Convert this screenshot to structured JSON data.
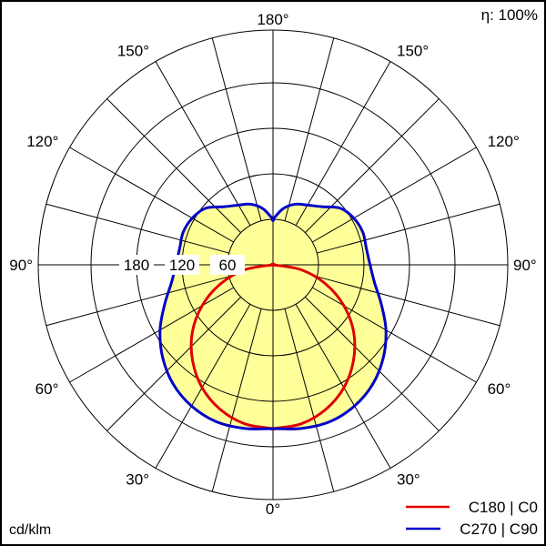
{
  "efficiency_label": "η: 100%",
  "unit_label": "cd/klm",
  "chart_data": {
    "type": "polar",
    "radial_ticks": [
      60,
      120,
      180
    ],
    "angle_labels": [
      {
        "text": "180°",
        "angle": 180,
        "side": "top"
      },
      {
        "text": "150°",
        "angle": 150,
        "side": "left"
      },
      {
        "text": "150°",
        "angle": 150,
        "side": "right"
      },
      {
        "text": "120°",
        "angle": 120,
        "side": "left"
      },
      {
        "text": "120°",
        "angle": 120,
        "side": "right"
      },
      {
        "text": "90°",
        "angle": 90,
        "side": "left"
      },
      {
        "text": "90°",
        "angle": 90,
        "side": "right"
      },
      {
        "text": "60°",
        "angle": 60,
        "side": "left"
      },
      {
        "text": "60°",
        "angle": 60,
        "side": "right"
      },
      {
        "text": "30°",
        "angle": 30,
        "side": "left"
      },
      {
        "text": "30°",
        "angle": 30,
        "side": "right"
      },
      {
        "text": "0°",
        "angle": 0,
        "side": "bottom"
      }
    ],
    "spokes_every_deg": 15,
    "series": [
      {
        "name": "C180 | C0",
        "color": "#e00000",
        "angles": [
          0,
          10,
          20,
          30,
          40,
          50,
          60,
          70,
          80,
          90
        ],
        "values": [
          216,
          213,
          203,
          187,
          165,
          139,
          108,
          74,
          38,
          0
        ]
      },
      {
        "name": "C270 | C90",
        "color": "#0000c8",
        "angles": [
          0,
          10,
          20,
          30,
          40,
          50,
          60,
          70,
          80,
          90,
          100,
          110,
          120,
          130,
          140,
          150,
          160,
          170,
          180
        ],
        "values": [
          216,
          219,
          220,
          215,
          205,
          190,
          172,
          152,
          136,
          128,
          125,
          126,
          123,
          116,
          100,
          91,
          85,
          75,
          60
        ]
      }
    ],
    "fill_color": "#ffff99",
    "legend_position": "bottom-right"
  }
}
